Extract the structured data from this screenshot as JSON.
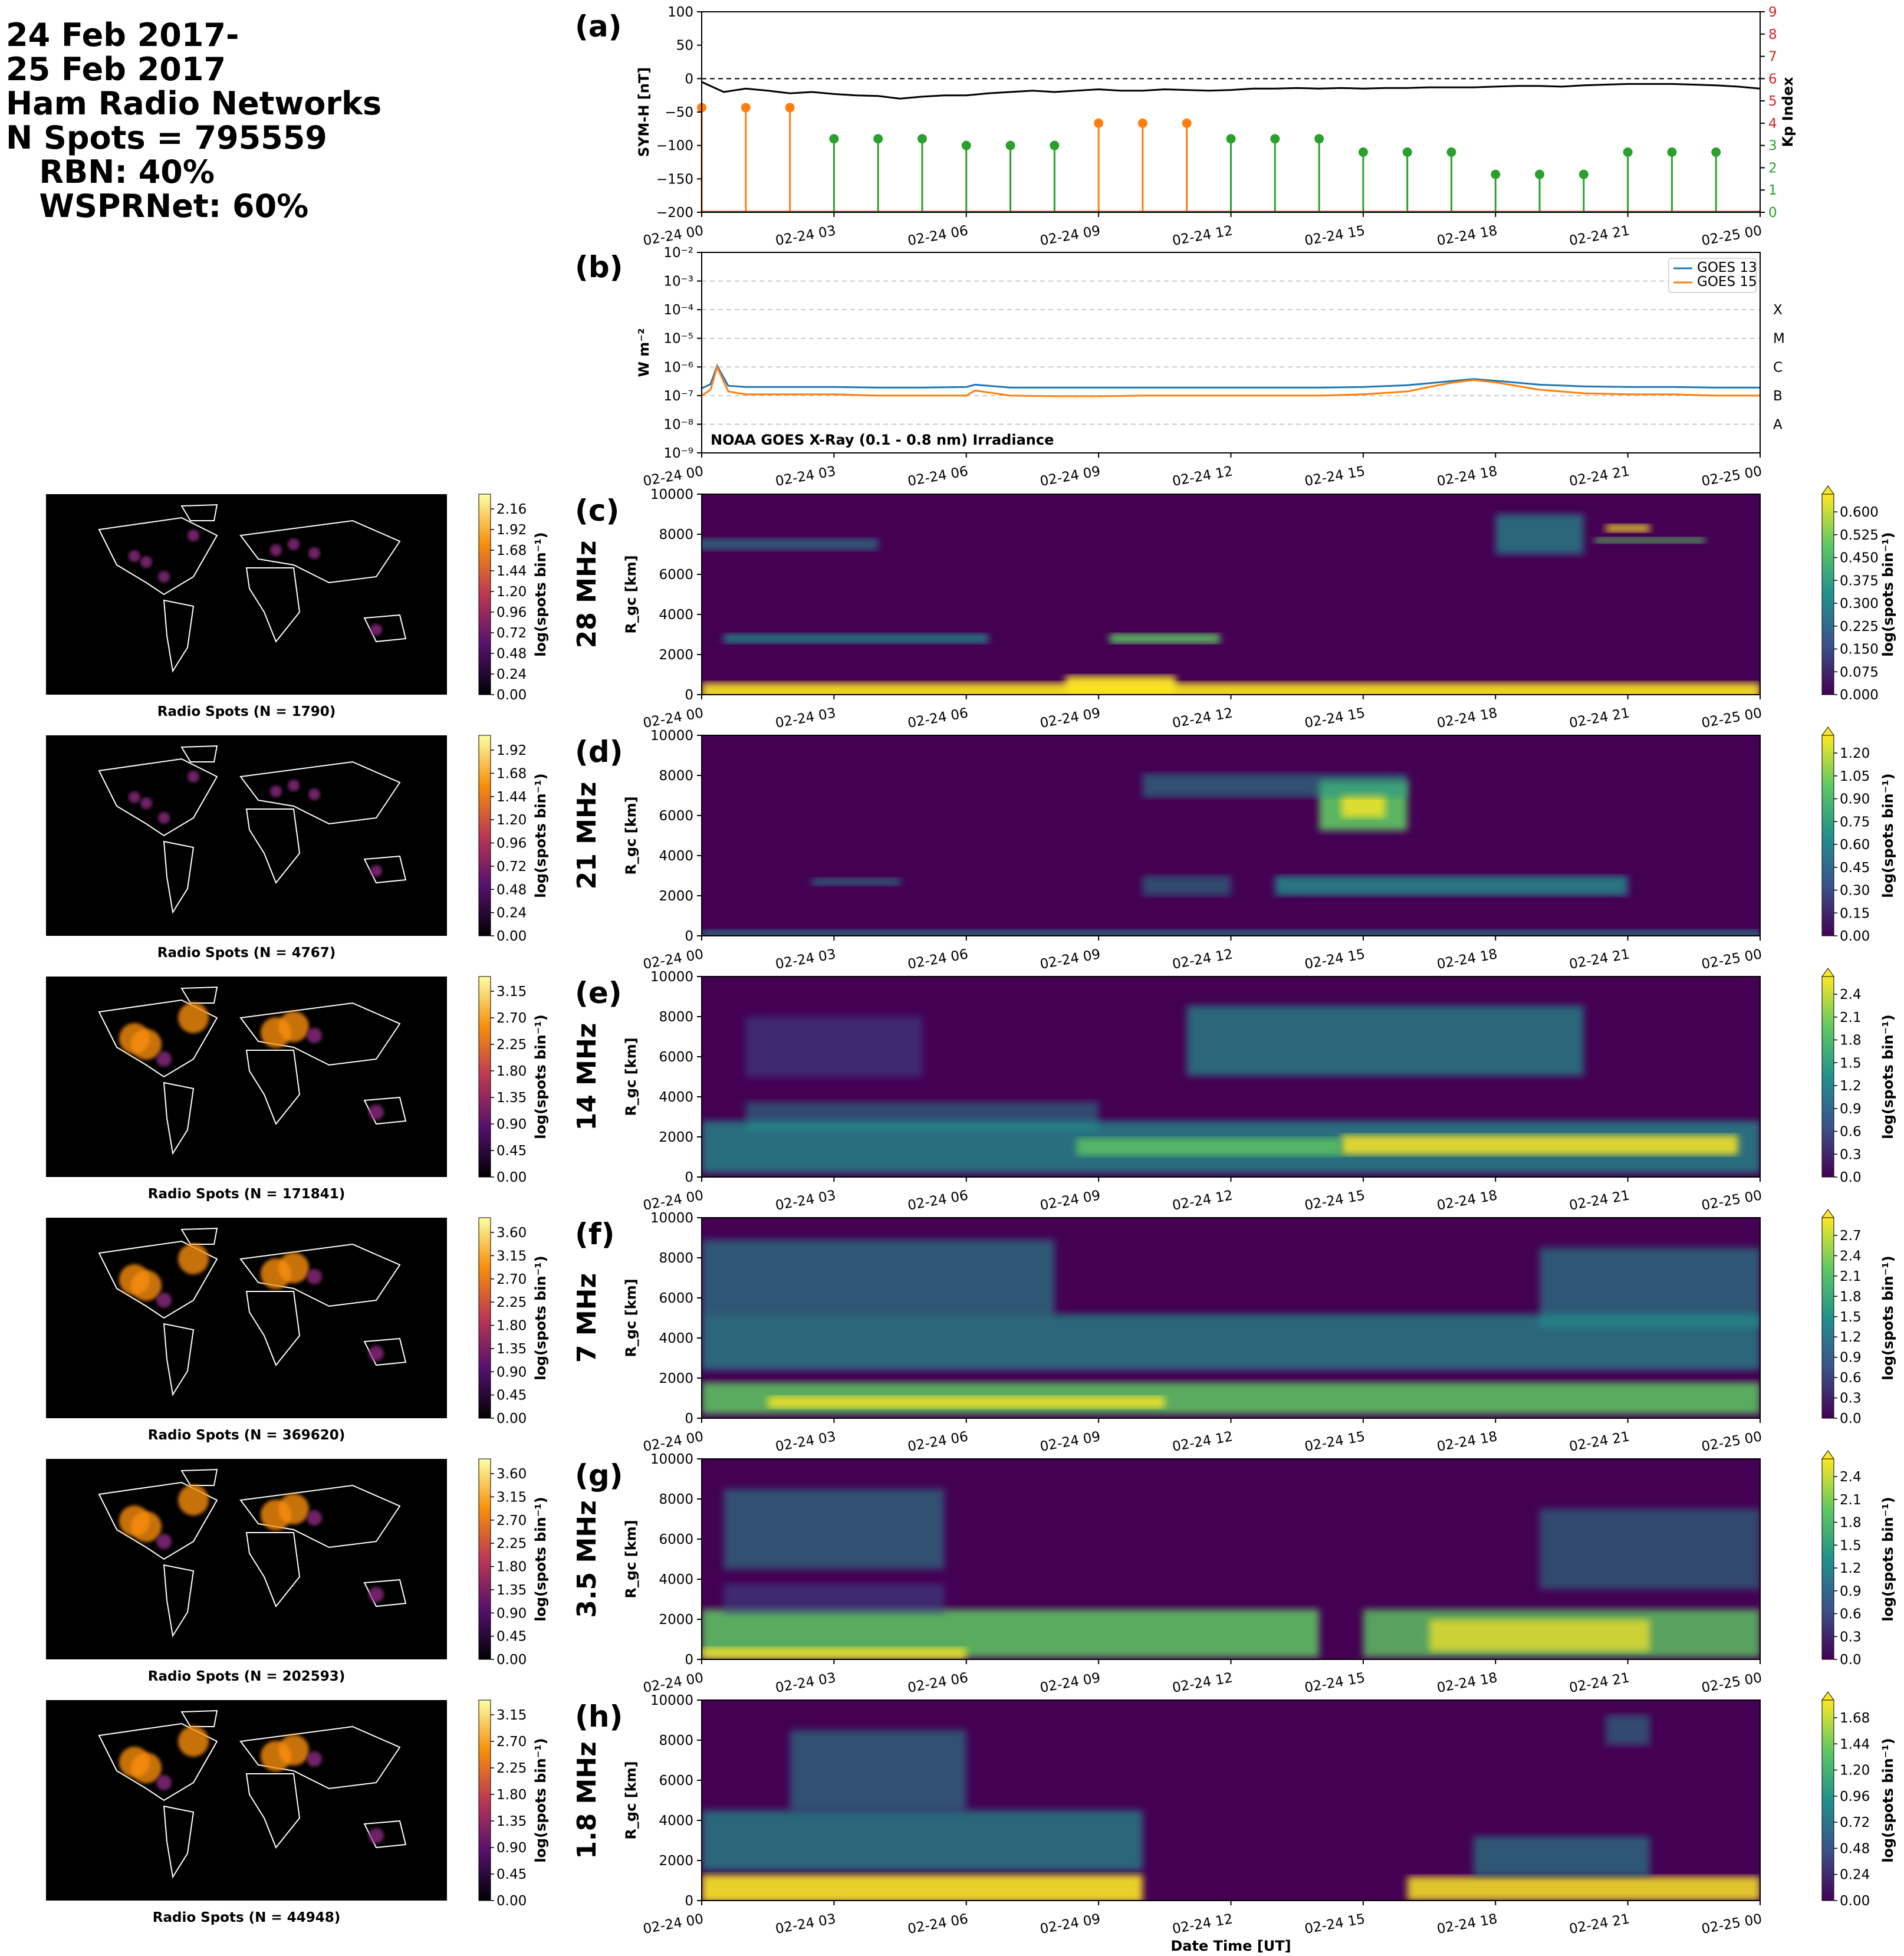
{
  "header": {
    "lines": [
      "24 Feb 2017-",
      "25 Feb 2017",
      "Ham Radio Networks",
      "N Spots = 795559",
      "   RBN: 40%",
      "   WSPRNet: 60%"
    ]
  },
  "time_ticks": [
    "02-24 00",
    "02-24 03",
    "02-24 06",
    "02-24 09",
    "02-24 12",
    "02-24 15",
    "02-24 18",
    "02-24 21",
    "02-25 00"
  ],
  "xlabel": "Date Time [UT]",
  "colors": {
    "symh": "#000000",
    "kp_quiet": "#2ca02c",
    "kp_active": "#ff7f0e",
    "kp_axis": "#d62728",
    "goes13": "#1f77b4",
    "goes15": "#ff7f0e"
  },
  "chart_data": [
    {
      "id": "a",
      "type": "line",
      "panel_label": "(a)",
      "ylabel": "SYM-H [nT]",
      "ylim": [
        -200,
        100
      ],
      "yticks": [
        "100",
        "50",
        "0",
        "−50",
        "−100",
        "−150",
        "−200"
      ],
      "x": [
        0,
        0.5,
        1,
        1.5,
        2,
        2.5,
        3,
        3.5,
        4,
        4.5,
        5,
        5.5,
        6,
        6.5,
        7,
        7.5,
        8,
        8.5,
        9,
        9.5,
        10,
        10.5,
        11,
        11.5,
        12,
        12.5,
        13,
        13.5,
        14,
        14.5,
        15,
        15.5,
        16,
        16.5,
        17,
        17.5,
        18,
        18.5,
        19,
        19.5,
        20,
        20.5,
        21,
        21.5,
        22,
        22.5,
        23,
        23.5,
        24
      ],
      "values": [
        -5,
        -20,
        -15,
        -18,
        -22,
        -20,
        -23,
        -25,
        -26,
        -30,
        -27,
        -25,
        -25,
        -22,
        -20,
        -18,
        -20,
        -18,
        -16,
        -18,
        -18,
        -16,
        -17,
        -18,
        -17,
        -15,
        -15,
        -14,
        -15,
        -14,
        -15,
        -14,
        -14,
        -13,
        -13,
        -13,
        -12,
        -11,
        -11,
        -12,
        -10,
        -9,
        -8,
        -8,
        -8,
        -9,
        -10,
        -12,
        -15
      ],
      "right_axis": {
        "ylabel": "Kp Index",
        "ylim": [
          0,
          9
        ],
        "yticks": [
          "0",
          "1",
          "2",
          "3",
          "4",
          "5",
          "6",
          "7",
          "8",
          "9"
        ]
      },
      "kp": {
        "x": [
          0,
          1,
          2,
          3,
          4,
          5,
          6,
          7,
          8,
          9,
          10,
          11,
          12,
          13,
          14,
          15,
          16,
          17,
          18,
          19,
          20,
          21,
          22,
          23
        ],
        "values": [
          4.7,
          4.7,
          4.7,
          3.3,
          3.3,
          3.3,
          3.0,
          3.0,
          3.0,
          4.0,
          4.0,
          4.0,
          3.3,
          3.3,
          3.3,
          2.7,
          2.7,
          2.7,
          1.7,
          1.7,
          1.7,
          2.7,
          2.7,
          2.7
        ]
      },
      "reference_line": 0
    },
    {
      "id": "b",
      "type": "line",
      "panel_label": "(b)",
      "ylabel": "W m⁻²",
      "yscale": "log",
      "ylim": [
        1e-09,
        0.01
      ],
      "yticks": [
        "10⁻²",
        "10⁻³",
        "10⁻⁴",
        "10⁻⁵",
        "10⁻⁶",
        "10⁻⁷",
        "10⁻⁸",
        "10⁻⁹"
      ],
      "flare_classes": [
        "X",
        "M",
        "C",
        "B",
        "A"
      ],
      "annotation": "NOAA GOES X-Ray (0.1 - 0.8 nm) Irradiance",
      "legend_position": "top-right",
      "x": [
        0,
        0.2,
        0.35,
        0.6,
        1,
        2,
        3,
        4,
        5,
        6,
        6.2,
        7,
        8,
        9,
        10,
        11,
        12,
        13,
        14,
        15,
        16,
        16.5,
        17,
        17.5,
        18,
        19,
        20,
        21,
        22,
        23,
        24
      ],
      "series": [
        {
          "name": "GOES 13",
          "values": [
            1.8e-07,
            2.5e-07,
            1.1e-06,
            2.2e-07,
            2e-07,
            2e-07,
            2e-07,
            1.9e-07,
            1.9e-07,
            2e-07,
            2.4e-07,
            1.9e-07,
            1.9e-07,
            1.9e-07,
            1.9e-07,
            1.9e-07,
            1.9e-07,
            1.9e-07,
            1.9e-07,
            2e-07,
            2.3e-07,
            2.7e-07,
            3.2e-07,
            3.8e-07,
            3.3e-07,
            2.4e-07,
            2.1e-07,
            2e-07,
            2e-07,
            1.9e-07,
            1.9e-07
          ]
        },
        {
          "name": "GOES 15",
          "values": [
            1e-07,
            1.6e-07,
            1e-06,
            1.4e-07,
            1.1e-07,
            1.1e-07,
            1.1e-07,
            1e-07,
            1e-07,
            1e-07,
            1.5e-07,
            1e-07,
            9.5e-08,
            9.5e-08,
            1e-07,
            1e-07,
            1e-07,
            1e-07,
            1e-07,
            1.1e-07,
            1.4e-07,
            2e-07,
            2.8e-07,
            3.5e-07,
            2.9e-07,
            1.6e-07,
            1.2e-07,
            1.1e-07,
            1.1e-07,
            1e-07,
            1e-07
          ]
        }
      ]
    },
    {
      "id": "c",
      "type": "heatmap",
      "panel_label": "(c)",
      "band": "28 MHz",
      "ylabel": "R_gc [km]",
      "ylim": [
        0,
        10000
      ],
      "yticks": [
        "10000",
        "8000",
        "6000",
        "4000",
        "2000",
        "0"
      ],
      "colorbar_label": "log(spots bin⁻¹)",
      "colorbar_ticks": [
        "0.000",
        "0.075",
        "0.150",
        "0.225",
        "0.300",
        "0.375",
        "0.450",
        "0.525",
        "0.600"
      ],
      "map_label": "Radio Spots (N = 1790)",
      "map_colorbar_ticks": [
        "0.00",
        "0.24",
        "0.48",
        "0.72",
        "0.96",
        "1.20",
        "1.44",
        "1.68",
        "1.92",
        "2.16"
      ]
    },
    {
      "id": "d",
      "type": "heatmap",
      "panel_label": "(d)",
      "band": "21 MHz",
      "ylabel": "R_gc [km]",
      "ylim": [
        0,
        10000
      ],
      "yticks": [
        "10000",
        "8000",
        "6000",
        "4000",
        "2000",
        "0"
      ],
      "colorbar_label": "log(spots bin⁻¹)",
      "colorbar_ticks": [
        "0.00",
        "0.15",
        "0.30",
        "0.45",
        "0.60",
        "0.75",
        "0.90",
        "1.05",
        "1.20"
      ],
      "map_label": "Radio Spots (N = 4767)",
      "map_colorbar_ticks": [
        "0.00",
        "0.24",
        "0.48",
        "0.72",
        "0.96",
        "1.20",
        "1.44",
        "1.68",
        "1.92"
      ]
    },
    {
      "id": "e",
      "type": "heatmap",
      "panel_label": "(e)",
      "band": "14 MHz",
      "ylabel": "R_gc [km]",
      "ylim": [
        0,
        10000
      ],
      "yticks": [
        "10000",
        "8000",
        "6000",
        "4000",
        "2000",
        "0"
      ],
      "colorbar_label": "log(spots bin⁻¹)",
      "colorbar_ticks": [
        "0.0",
        "0.3",
        "0.6",
        "0.9",
        "1.2",
        "1.5",
        "1.8",
        "2.1",
        "2.4"
      ],
      "map_label": "Radio Spots (N = 171841)",
      "map_colorbar_ticks": [
        "0.00",
        "0.45",
        "0.90",
        "1.35",
        "1.80",
        "2.25",
        "2.70",
        "3.15"
      ]
    },
    {
      "id": "f",
      "type": "heatmap",
      "panel_label": "(f)",
      "band": "7 MHz",
      "ylabel": "R_gc [km]",
      "ylim": [
        0,
        10000
      ],
      "yticks": [
        "10000",
        "8000",
        "6000",
        "4000",
        "2000",
        "0"
      ],
      "colorbar_label": "log(spots bin⁻¹)",
      "colorbar_ticks": [
        "0.0",
        "0.3",
        "0.6",
        "0.9",
        "1.2",
        "1.5",
        "1.8",
        "2.1",
        "2.4",
        "2.7"
      ],
      "map_label": "Radio Spots (N = 369620)",
      "map_colorbar_ticks": [
        "0.00",
        "0.45",
        "0.90",
        "1.35",
        "1.80",
        "2.25",
        "2.70",
        "3.15",
        "3.60"
      ]
    },
    {
      "id": "g",
      "type": "heatmap",
      "panel_label": "(g)",
      "band": "3.5 MHz",
      "ylabel": "R_gc [km]",
      "ylim": [
        0,
        10000
      ],
      "yticks": [
        "10000",
        "8000",
        "6000",
        "4000",
        "2000",
        "0"
      ],
      "colorbar_label": "log(spots bin⁻¹)",
      "colorbar_ticks": [
        "0.0",
        "0.3",
        "0.6",
        "0.9",
        "1.2",
        "1.5",
        "1.8",
        "2.1",
        "2.4"
      ],
      "map_label": "Radio Spots (N = 202593)",
      "map_colorbar_ticks": [
        "0.00",
        "0.45",
        "0.90",
        "1.35",
        "1.80",
        "2.25",
        "2.70",
        "3.15",
        "3.60"
      ]
    },
    {
      "id": "h",
      "type": "heatmap",
      "panel_label": "(h)",
      "band": "1.8 MHz",
      "ylabel": "R_gc [km]",
      "ylim": [
        0,
        10000
      ],
      "yticks": [
        "10000",
        "8000",
        "6000",
        "4000",
        "2000",
        "0"
      ],
      "colorbar_label": "log(spots bin⁻¹)",
      "colorbar_ticks": [
        "0.00",
        "0.24",
        "0.48",
        "0.72",
        "0.96",
        "1.20",
        "1.44",
        "1.68"
      ],
      "map_label": "Radio Spots (N = 44948)",
      "map_colorbar_ticks": [
        "0.00",
        "0.45",
        "0.90",
        "1.35",
        "1.80",
        "2.25",
        "2.70",
        "3.15"
      ]
    }
  ]
}
